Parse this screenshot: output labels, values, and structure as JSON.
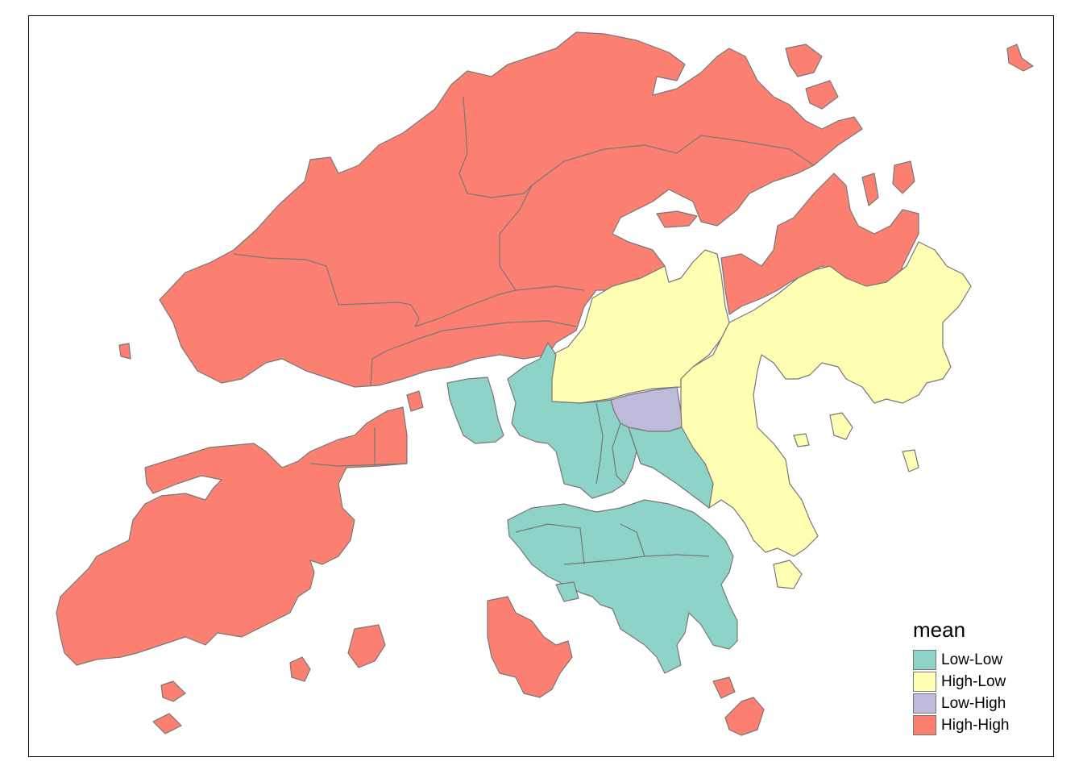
{
  "legend": {
    "title": "mean",
    "items": [
      {
        "key": "low_low",
        "label": "Low-Low",
        "color": "#8DD3C7"
      },
      {
        "key": "high_low",
        "label": "High-Low",
        "color": "#FFFFB3"
      },
      {
        "key": "low_high",
        "label": "Low-High",
        "color": "#BEBADA"
      },
      {
        "key": "high_high",
        "label": "High-High",
        "color": "#FB8072"
      }
    ]
  },
  "map": {
    "region_classes": [
      {
        "id": "north-west",
        "class": "high_high"
      },
      {
        "id": "north-central",
        "class": "high_high"
      },
      {
        "id": "north-east",
        "class": "high_high"
      },
      {
        "id": "sai-kung-north",
        "class": "high_high"
      },
      {
        "id": "lantau",
        "class": "high_high"
      },
      {
        "id": "lamma",
        "class": "high_high"
      },
      {
        "id": "east-new-territories",
        "class": "high_low"
      },
      {
        "id": "sai-kung",
        "class": "high_low"
      },
      {
        "id": "central-kowloon",
        "class": "low_high"
      },
      {
        "id": "west-kowloon",
        "class": "low_low"
      },
      {
        "id": "east-kowloon",
        "class": "low_low"
      },
      {
        "id": "tsing-yi",
        "class": "low_low"
      },
      {
        "id": "hong-kong-island",
        "class": "low_low"
      }
    ]
  }
}
